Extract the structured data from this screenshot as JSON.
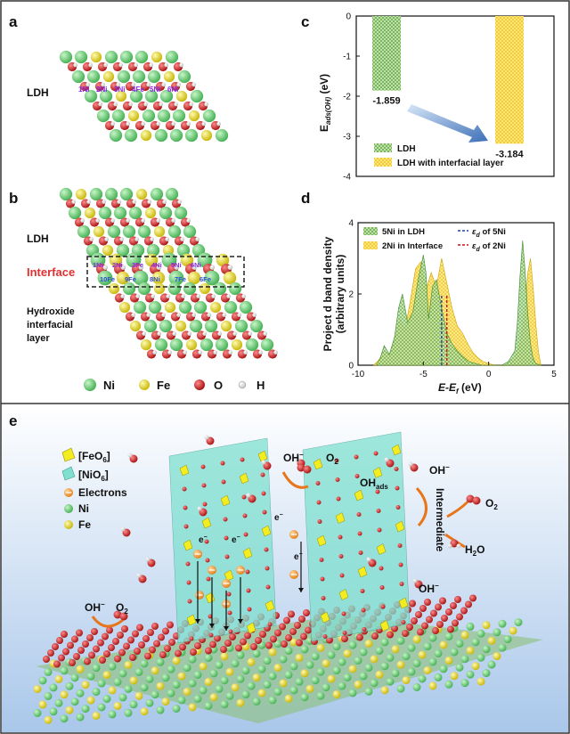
{
  "panels": {
    "a": {
      "letter": "a",
      "layer_label": "LDH",
      "site_labels": [
        "1Ni",
        "2Ni",
        "3Ni",
        "4Fe",
        "5Ni",
        "6Ni"
      ]
    },
    "b": {
      "letter": "b",
      "labels": {
        "ldh": "LDH",
        "interface": "Interface",
        "hydroxide_1": "Hydroxide",
        "hydroxide_2": "interfacial",
        "hydroxide_3": "layer"
      },
      "top_sites": [
        "1Ni",
        "2Ni",
        "3Fe",
        "4Ni",
        "5Ni",
        "6Ni"
      ],
      "bottom_sites": [
        "10Fe",
        "9Fe",
        "8Ni",
        "7Fe",
        "6Fe"
      ]
    },
    "c": {
      "letter": "c",
      "chart_data": {
        "type": "bar",
        "ylabel_main": "E",
        "ylabel_sub": "ads(OH)",
        "ylabel_unit": " (eV)",
        "ylim": [
          -4,
          0
        ],
        "yticks": [
          "0",
          "-1",
          "-2",
          "-3",
          "-4"
        ],
        "series": [
          {
            "name": "LDH",
            "value": -1.859,
            "label": "-1.859",
            "color": "#6ab04c"
          },
          {
            "name": "LDH with interfacial layer",
            "value": -3.184,
            "label": "-3.184",
            "color": "#f5c518"
          }
        ]
      }
    },
    "d": {
      "letter": "d",
      "chart_data": {
        "type": "area",
        "ylabel_1": "Project d band density",
        "ylabel_2": "(arbitrary units)",
        "xlabel_main": "E-E",
        "xlabel_sub": "f",
        "xlabel_unit": " (eV)",
        "xlim": [
          -10,
          5
        ],
        "ylim": [
          0,
          4
        ],
        "xticks": [
          "-10",
          "-5",
          "0",
          "5"
        ],
        "yticks": [
          "0",
          "2",
          "4"
        ],
        "series": [
          {
            "name": "5Ni in LDH",
            "color": "#6ab04c",
            "center_name": "of 5Ni",
            "center": -3.6,
            "x": [
              -8.6,
              -8.3,
              -8.0,
              -7.6,
              -7.2,
              -6.9,
              -6.6,
              -6.2,
              -5.8,
              -5.4,
              -5.0,
              -4.8,
              -4.6,
              -4.3,
              -4.0,
              -3.6,
              -3.2,
              -2.8,
              -2.4,
              -2.0,
              -1.5,
              -1.0,
              -0.5,
              0.0,
              0.5,
              1.0,
              1.5,
              2.0,
              2.2,
              2.4,
              2.6,
              2.8,
              3.0,
              3.2,
              3.4,
              3.6,
              4.0
            ],
            "y": [
              0,
              0.2,
              0.55,
              0.3,
              0.8,
              1.6,
              2.0,
              1.2,
              1.5,
              2.4,
              3.1,
              2.6,
              1.3,
              2.2,
              2.4,
              1.6,
              0.9,
              0.6,
              0.4,
              0.25,
              0.1,
              0.05,
              0,
              0,
              0,
              0,
              0.1,
              0.4,
              1.2,
              2.5,
              3.5,
              2.6,
              1.4,
              0.6,
              0.2,
              0.05,
              0
            ]
          },
          {
            "name": "2Ni in Interface",
            "color": "#f5c518",
            "center_name": "of 2Ni",
            "center": -3.2,
            "x": [
              -8.8,
              -8.4,
              -8.0,
              -7.6,
              -7.2,
              -6.8,
              -6.4,
              -6.0,
              -5.6,
              -5.2,
              -4.8,
              -4.4,
              -4.0,
              -3.6,
              -3.2,
              -2.8,
              -2.4,
              -2.0,
              -1.6,
              -1.2,
              -0.8,
              -0.4,
              0.0,
              0.5,
              1.0,
              1.5,
              2.0,
              2.4,
              2.8,
              3.0,
              3.2,
              3.4,
              3.6,
              3.8,
              4.0
            ],
            "y": [
              0,
              0.15,
              0.4,
              0.3,
              0.7,
              1.3,
              1.0,
              1.8,
              2.7,
              2.9,
              2.1,
              2.6,
              2.2,
              3.0,
              2.3,
              1.6,
              1.1,
              0.9,
              0.6,
              0.35,
              0.2,
              0.1,
              0.05,
              0,
              0,
              0.05,
              0.2,
              0.6,
              1.6,
              2.6,
              3.0,
              2.2,
              1.2,
              0.4,
              0
            ]
          }
        ]
      }
    },
    "e": {
      "letter": "e",
      "legend": {
        "feo6": "[FeO",
        "feo6_close": "]",
        "nio6": "[NiO",
        "nio6_close": "]",
        "sub": "6",
        "electrons": "Electrons",
        "ni": "Ni",
        "fe": "Fe"
      },
      "labels": {
        "oh_top": "OH",
        "o2_top": "O",
        "oh_right": "OH",
        "ohads": "OH",
        "ohads_sub": "ads",
        "intermediate": "Intermediate",
        "o2_right": "O",
        "h2o": "H",
        "h2o_2": "O",
        "oh_bottom": "OH",
        "oh_left": "OH",
        "o2_left": "O",
        "sub2": "2",
        "minus": "−",
        "electron": "e",
        "electron_sup": "−"
      }
    },
    "atom_legend": {
      "ni": "Ni",
      "fe": "Fe",
      "o": "O",
      "h": "H"
    }
  },
  "colors": {
    "ni": "#5cc86a",
    "fe": "#e8d820",
    "o": "#d11f1f",
    "h": "#f4f4f4",
    "ldh_bar": "#6ab04c",
    "interface_bar": "#f5c518",
    "interface_text": "#e03030",
    "bg_e_top": "#ffffff",
    "bg_e_bottom": "#a9c7ea",
    "nio6": "#7fe0d0",
    "feo6": "#f2ec20"
  }
}
